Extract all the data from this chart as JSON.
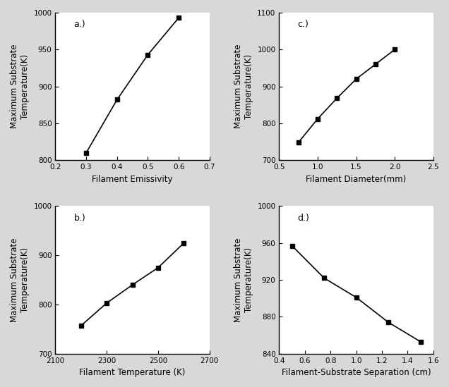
{
  "panel_a": {
    "label": "a.)",
    "x": [
      0.3,
      0.4,
      0.5,
      0.6
    ],
    "y": [
      810,
      882,
      943,
      993
    ],
    "xlabel": "Filament Emissivity",
    "ylabel": "Maximum Substrate\nTemperature(K)",
    "xlim": [
      0.2,
      0.7
    ],
    "ylim": [
      800,
      1000
    ],
    "xticks": [
      0.2,
      0.3,
      0.4,
      0.5,
      0.6,
      0.7
    ],
    "yticks": [
      800,
      850,
      900,
      950,
      1000
    ]
  },
  "panel_b": {
    "label": "b.)",
    "x": [
      2200,
      2300,
      2400,
      2500,
      2600
    ],
    "y": [
      757,
      803,
      840,
      875,
      925
    ],
    "xlabel": "Filament Temperature (K)",
    "ylabel": "Maximum Substrate\nTemperature(K)",
    "xlim": [
      2100,
      2700
    ],
    "ylim": [
      700,
      1000
    ],
    "xticks": [
      2100,
      2300,
      2500,
      2700
    ],
    "yticks": [
      700,
      800,
      900,
      1000
    ]
  },
  "panel_c": {
    "label": "c.)",
    "x": [
      0.75,
      1.0,
      1.25,
      1.5,
      1.75,
      2.0
    ],
    "y": [
      748,
      812,
      868,
      920,
      960,
      1000
    ],
    "xlabel": "Filament Diameter(mm)",
    "ylabel": "Maximum Substrate\nTemperature(K)",
    "xlim": [
      0.5,
      2.5
    ],
    "ylim": [
      700,
      1100
    ],
    "xticks": [
      0.5,
      1.0,
      1.5,
      2.0,
      2.5
    ],
    "yticks": [
      700,
      800,
      900,
      1000,
      1100
    ]
  },
  "panel_d": {
    "label": "d.)",
    "x": [
      0.5,
      0.75,
      1.0,
      1.25,
      1.5
    ],
    "y": [
      957,
      922,
      901,
      874,
      853
    ],
    "xlabel": "Filament-Substrate Separation (cm)",
    "ylabel": "Maximum Substrate\nTemperature(K)",
    "xlim": [
      0.4,
      1.6
    ],
    "ylim": [
      840,
      1000
    ],
    "xticks": [
      0.4,
      0.6,
      0.8,
      1.0,
      1.2,
      1.4,
      1.6
    ],
    "yticks": [
      840,
      880,
      920,
      960,
      1000
    ]
  },
  "line_color": "#000000",
  "marker": "s",
  "markersize": 4,
  "linewidth": 1.2,
  "bg_color": "#d8d8d8",
  "plot_bg": "#ffffff",
  "label_fontsize": 8.5,
  "tick_fontsize": 7.5,
  "panel_label_fontsize": 9
}
